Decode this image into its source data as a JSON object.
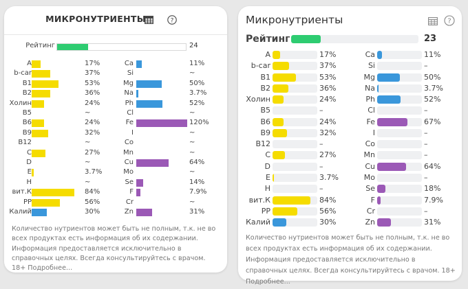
{
  "colors": {
    "vitamin": "#f5dc00",
    "mineral": "#3a97db",
    "trace": "#9b59b6",
    "rating": "#2ecc71"
  },
  "panels": [
    {
      "title": "МИКРОНУТРИЕНТЫ",
      "rating": {
        "label": "Рейтинг",
        "value": "24",
        "percent": 24
      },
      "left_items": [
        {
          "name": "A",
          "value": "17%",
          "percent": 17,
          "color": "vitamin"
        },
        {
          "name": "b-car",
          "value": "37%",
          "percent": 37,
          "color": "vitamin"
        },
        {
          "name": "B1",
          "value": "53%",
          "percent": 53,
          "color": "vitamin"
        },
        {
          "name": "B2",
          "value": "36%",
          "percent": 36,
          "color": "vitamin"
        },
        {
          "name": "Холин",
          "value": "24%",
          "percent": 24,
          "color": "vitamin"
        },
        {
          "name": "B5",
          "value": "~",
          "percent": 0,
          "color": "vitamin"
        },
        {
          "name": "B6",
          "value": "24%",
          "percent": 24,
          "color": "vitamin"
        },
        {
          "name": "B9",
          "value": "32%",
          "percent": 32,
          "color": "vitamin"
        },
        {
          "name": "B12",
          "value": "~",
          "percent": 0,
          "color": "vitamin"
        },
        {
          "name": "C",
          "value": "27%",
          "percent": 27,
          "color": "vitamin"
        },
        {
          "name": "D",
          "value": "~",
          "percent": 0,
          "color": "vitamin"
        },
        {
          "name": "E",
          "value": "3.7%",
          "percent": 3.7,
          "color": "vitamin"
        },
        {
          "name": "H",
          "value": "~",
          "percent": 0,
          "color": "vitamin"
        },
        {
          "name": "вит.К",
          "value": "84%",
          "percent": 84,
          "color": "vitamin"
        },
        {
          "name": "PP",
          "value": "56%",
          "percent": 56,
          "color": "vitamin"
        },
        {
          "name": "Калий",
          "value": "30%",
          "percent": 30,
          "color": "mineral"
        }
      ],
      "right_items": [
        {
          "name": "Ca",
          "value": "11%",
          "percent": 11,
          "color": "mineral"
        },
        {
          "name": "Si",
          "value": "~",
          "percent": 0,
          "color": "mineral"
        },
        {
          "name": "Mg",
          "value": "50%",
          "percent": 50,
          "color": "mineral"
        },
        {
          "name": "Na",
          "value": "3.7%",
          "percent": 3.7,
          "color": "mineral"
        },
        {
          "name": "Ph",
          "value": "52%",
          "percent": 52,
          "color": "mineral"
        },
        {
          "name": "Cl",
          "value": "~",
          "percent": 0,
          "color": "mineral"
        },
        {
          "name": "Fe",
          "value": "120%",
          "percent": 120,
          "color": "trace"
        },
        {
          "name": "I",
          "value": "~",
          "percent": 0,
          "color": "trace"
        },
        {
          "name": "Co",
          "value": "~",
          "percent": 0,
          "color": "trace"
        },
        {
          "name": "Mn",
          "value": "~",
          "percent": 0,
          "color": "trace"
        },
        {
          "name": "Cu",
          "value": "64%",
          "percent": 64,
          "color": "trace"
        },
        {
          "name": "Mo",
          "value": "~",
          "percent": 0,
          "color": "trace"
        },
        {
          "name": "Se",
          "value": "14%",
          "percent": 14,
          "color": "trace"
        },
        {
          "name": "F",
          "value": "7.9%",
          "percent": 7.9,
          "color": "trace"
        },
        {
          "name": "Cr",
          "value": "~",
          "percent": 0,
          "color": "trace"
        },
        {
          "name": "Zn",
          "value": "31%",
          "percent": 31,
          "color": "trace"
        }
      ],
      "note": "Количество нутриентов может быть не полным, т.к. не во всех продуктах есть информация об их содержании. Информация предоставляется исключительно в справочных целях. Всегда консультируйтесь с врачом. 18+ Подробнее..."
    },
    {
      "title": "Микронутриенты",
      "rating": {
        "label": "Рейтинг",
        "value": "23",
        "percent": 23
      },
      "left_items": [
        {
          "name": "A",
          "value": "17%",
          "percent": 17,
          "color": "vitamin"
        },
        {
          "name": "b-car",
          "value": "37%",
          "percent": 37,
          "color": "vitamin"
        },
        {
          "name": "B1",
          "value": "53%",
          "percent": 53,
          "color": "vitamin"
        },
        {
          "name": "B2",
          "value": "36%",
          "percent": 36,
          "color": "vitamin"
        },
        {
          "name": "Холин",
          "value": "24%",
          "percent": 24,
          "color": "vitamin"
        },
        {
          "name": "B5",
          "value": "–",
          "percent": 0,
          "color": "vitamin"
        },
        {
          "name": "B6",
          "value": "24%",
          "percent": 24,
          "color": "vitamin"
        },
        {
          "name": "B9",
          "value": "32%",
          "percent": 32,
          "color": "vitamin"
        },
        {
          "name": "B12",
          "value": "–",
          "percent": 0,
          "color": "vitamin"
        },
        {
          "name": "C",
          "value": "27%",
          "percent": 27,
          "color": "vitamin"
        },
        {
          "name": "D",
          "value": "–",
          "percent": 0,
          "color": "vitamin"
        },
        {
          "name": "E",
          "value": "3.7%",
          "percent": 3.7,
          "color": "vitamin"
        },
        {
          "name": "H",
          "value": "–",
          "percent": 0,
          "color": "vitamin"
        },
        {
          "name": "вит.К",
          "value": "84%",
          "percent": 84,
          "color": "vitamin"
        },
        {
          "name": "PP",
          "value": "56%",
          "percent": 56,
          "color": "vitamin"
        },
        {
          "name": "Калий",
          "value": "30%",
          "percent": 30,
          "color": "mineral"
        }
      ],
      "right_items": [
        {
          "name": "Ca",
          "value": "11%",
          "percent": 11,
          "color": "mineral"
        },
        {
          "name": "Si",
          "value": "–",
          "percent": 0,
          "color": "mineral"
        },
        {
          "name": "Mg",
          "value": "50%",
          "percent": 50,
          "color": "mineral"
        },
        {
          "name": "Na",
          "value": "3.7%",
          "percent": 3.7,
          "color": "mineral"
        },
        {
          "name": "Ph",
          "value": "52%",
          "percent": 52,
          "color": "mineral"
        },
        {
          "name": "Cl",
          "value": "–",
          "percent": 0,
          "color": "mineral"
        },
        {
          "name": "Fe",
          "value": "67%",
          "percent": 67,
          "color": "trace"
        },
        {
          "name": "I",
          "value": "–",
          "percent": 0,
          "color": "trace"
        },
        {
          "name": "Co",
          "value": "–",
          "percent": 0,
          "color": "trace"
        },
        {
          "name": "Mn",
          "value": "–",
          "percent": 0,
          "color": "trace"
        },
        {
          "name": "Cu",
          "value": "64%",
          "percent": 64,
          "color": "trace"
        },
        {
          "name": "Mo",
          "value": "–",
          "percent": 0,
          "color": "trace"
        },
        {
          "name": "Se",
          "value": "18%",
          "percent": 18,
          "color": "trace"
        },
        {
          "name": "F",
          "value": "7.9%",
          "percent": 7.9,
          "color": "trace"
        },
        {
          "name": "Cr",
          "value": "–",
          "percent": 0,
          "color": "trace"
        },
        {
          "name": "Zn",
          "value": "31%",
          "percent": 31,
          "color": "trace"
        }
      ],
      "note": "Количество нутриентов может быть не полным, т.к. не во всех продуктах есть информация об их содержании. Информация предоставляется исключительно в справочных целях. Всегда консультируйтесь с врачом. 18+ Подробнее..."
    }
  ]
}
